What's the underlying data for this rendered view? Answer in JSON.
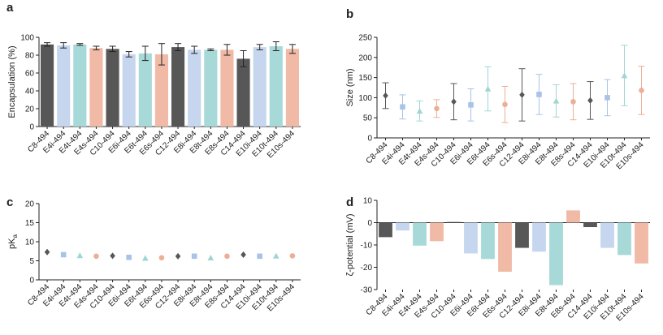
{
  "chart_data": [
    {
      "type": "bar",
      "panel_label": "a",
      "y_label": "Encapsulation (%)",
      "categories": [
        "C8-494",
        "E4i-494",
        "E4t-494",
        "E4s-494",
        "C10-494",
        "E6i-494",
        "E6t-494",
        "E6s-494",
        "C12-494",
        "E8i-494",
        "E8t-494",
        "E8s-494",
        "C14-494",
        "E10i-494",
        "E10t-494",
        "E10s-494"
      ],
      "values": [
        92,
        91,
        92,
        88,
        87,
        81,
        82,
        81,
        89,
        86,
        86,
        86,
        76,
        89,
        90,
        87
      ],
      "errors": [
        2,
        3,
        1,
        2,
        3,
        3,
        8,
        12,
        4,
        4,
        1,
        6,
        9,
        3,
        5,
        5
      ],
      "colors": [
        "#575757",
        "#c6d6ef",
        "#a7d9d8",
        "#f0baa6",
        "#575757",
        "#c6d6ef",
        "#a7d9d8",
        "#f0baa6",
        "#575757",
        "#c6d6ef",
        "#a7d9d8",
        "#f0baa6",
        "#575757",
        "#c6d6ef",
        "#a7d9d8",
        "#f0baa6"
      ],
      "ylim": [
        0,
        100
      ],
      "yticks": [
        0,
        20,
        40,
        60,
        80,
        100
      ]
    },
    {
      "type": "scatter",
      "panel_label": "b",
      "y_label": "Size (nm)",
      "categories": [
        "C8-494",
        "E4i-494",
        "E4t-494",
        "E4s-494",
        "C10-494",
        "E6i-494",
        "E6t-494",
        "E6s-494",
        "C12-494",
        "E8i-494",
        "E8t-494",
        "E8s-494",
        "C14-494",
        "E10i-494",
        "E10t-494",
        "E10s-494"
      ],
      "values": [
        105,
        77,
        67,
        73,
        90,
        82,
        122,
        83,
        107,
        108,
        92,
        90,
        93,
        100,
        155,
        118
      ],
      "errors": [
        32,
        30,
        25,
        22,
        45,
        40,
        55,
        45,
        65,
        50,
        40,
        45,
        47,
        45,
        75,
        60
      ],
      "colors": [
        "#575757",
        "#a9c2e8",
        "#9fd6d4",
        "#eeae96",
        "#575757",
        "#a9c2e8",
        "#9fd6d4",
        "#eeae96",
        "#575757",
        "#a9c2e8",
        "#9fd6d4",
        "#eeae96",
        "#575757",
        "#a9c2e8",
        "#9fd6d4",
        "#eeae96"
      ],
      "ylim": [
        0,
        250
      ],
      "yticks": [
        0,
        50,
        100,
        150,
        200,
        250
      ]
    },
    {
      "type": "scatter",
      "panel_label": "c",
      "y_label": "pK",
      "y_label_subscript": "a",
      "categories": [
        "C8-494",
        "E4i-494",
        "E4t-494",
        "E4s-494",
        "C10-494",
        "E6i-494",
        "E6t-494",
        "E6s-494",
        "C12-494",
        "E8i-494",
        "E8t-494",
        "E8s-494",
        "C14-494",
        "E10i-494",
        "E10t-494",
        "E10s-494"
      ],
      "values": [
        7.3,
        6.6,
        6.4,
        6.2,
        6.3,
        5.9,
        5.7,
        5.8,
        6.2,
        6.2,
        5.8,
        6.2,
        6.6,
        6.2,
        6.3,
        6.3
      ],
      "colors": [
        "#575757",
        "#a9c2e8",
        "#9fd6d4",
        "#eeae96",
        "#575757",
        "#a9c2e8",
        "#9fd6d4",
        "#eeae96",
        "#575757",
        "#a9c2e8",
        "#9fd6d4",
        "#eeae96",
        "#575757",
        "#a9c2e8",
        "#9fd6d4",
        "#eeae96"
      ],
      "ylim": [
        0,
        20
      ],
      "yticks": [
        0,
        5,
        10,
        15,
        20
      ]
    },
    {
      "type": "bar",
      "panel_label": "d",
      "y_label": "ζ-potential (mV)",
      "categories": [
        "C8-494",
        "E4i-494",
        "E4t-494",
        "E4s-494",
        "C10-494",
        "E6i-494",
        "E6t-494",
        "E6s-494",
        "C12-494",
        "E8i-494",
        "E8t-494",
        "E8s-494",
        "C14-494",
        "E10i-494",
        "E10t-494",
        "E10s-494"
      ],
      "values": [
        -6.5,
        -3.5,
        -10.3,
        -8.3,
        0.3,
        -13.8,
        -16.3,
        -22,
        -11.3,
        -13,
        -28,
        5.5,
        -2,
        -11.3,
        -14.5,
        -18.3
      ],
      "colors": [
        "#575757",
        "#c6d6ef",
        "#a7d9d8",
        "#f0baa6",
        "#575757",
        "#c6d6ef",
        "#a7d9d8",
        "#f0baa6",
        "#575757",
        "#c6d6ef",
        "#a7d9d8",
        "#f0baa6",
        "#575757",
        "#c6d6ef",
        "#a7d9d8",
        "#f0baa6"
      ],
      "ylim": [
        -30,
        10
      ],
      "yticks": [
        -30,
        -20,
        -10,
        0,
        10
      ]
    }
  ]
}
